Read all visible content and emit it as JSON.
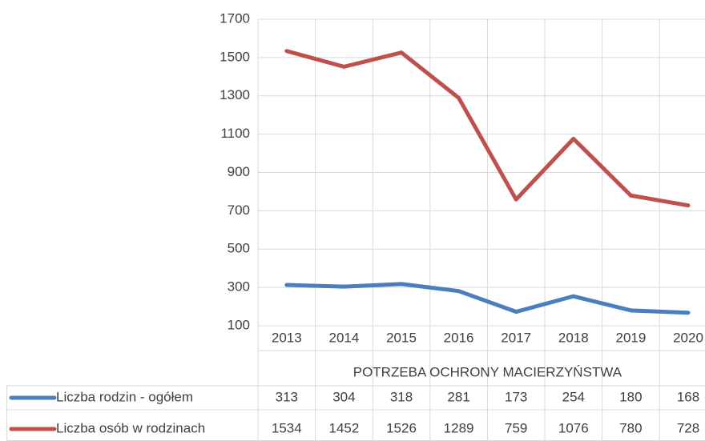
{
  "chart_data": {
    "type": "line",
    "categories": [
      "2013",
      "2014",
      "2015",
      "2016",
      "2017",
      "2018",
      "2019",
      "2020"
    ],
    "category_group": "POTRZEBA OCHRONY MACIERZYŃSTWA",
    "series": [
      {
        "name": "Liczba rodzin - ogółem",
        "color": "#4a7ebf",
        "values": [
          313,
          304,
          318,
          281,
          173,
          254,
          180,
          168
        ]
      },
      {
        "name": "Liczba osób w rodzinach",
        "color": "#c0504d",
        "values": [
          1534,
          1452,
          1526,
          1289,
          759,
          1076,
          780,
          728
        ]
      }
    ],
    "ylim": [
      100,
      1700
    ],
    "yticks": [
      100,
      300,
      500,
      700,
      900,
      1100,
      1300,
      1500,
      1700
    ],
    "grid": true
  }
}
